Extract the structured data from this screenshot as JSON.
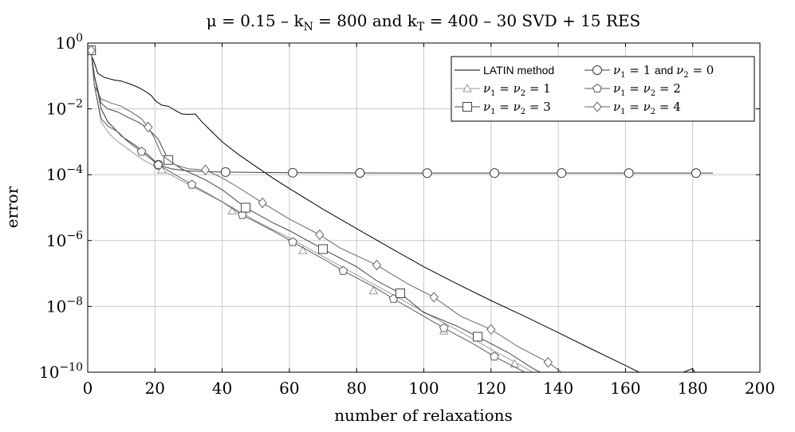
{
  "chart_data": {
    "type": "line",
    "title": "μ = 0.15 – k_N = 800 and k_T = 400 – 30 SVD + 15 RES",
    "title_parts": {
      "prefix": "μ = 0.15 – k",
      "sub1": "N",
      "mid": " = 800 and k",
      "sub2": "T",
      "suffix": " = 400 – 30 SVD + 15 RES"
    },
    "xlabel": "number of relaxations",
    "ylabel": "error",
    "xlim": [
      0,
      200
    ],
    "ylim": [
      1e-10,
      1
    ],
    "yscale": "log",
    "grid": true,
    "legend_position": "top-right",
    "x_ticks": [
      0,
      20,
      40,
      60,
      80,
      100,
      120,
      140,
      160,
      180,
      200
    ],
    "y_ticks": [
      {
        "exp": "0",
        "value": 1
      },
      {
        "exp": "−2",
        "value": 0.01
      },
      {
        "exp": "−4",
        "value": 0.0001
      },
      {
        "exp": "−6",
        "value": 1e-06
      },
      {
        "exp": "−8",
        "value": 1e-08
      },
      {
        "exp": "−10",
        "value": 1e-10
      }
    ],
    "series": [
      {
        "name": "LATIN method",
        "legend_parts": [
          {
            "t": "LATIN method",
            "f": "sans"
          }
        ],
        "marker": "none",
        "color": "#000000",
        "points": [
          [
            0,
            0.5
          ],
          [
            1,
            0.45
          ],
          [
            2,
            0.25
          ],
          [
            3,
            0.12
          ],
          [
            5,
            0.09
          ],
          [
            8,
            0.075
          ],
          [
            10,
            0.07
          ],
          [
            13,
            0.055
          ],
          [
            15,
            0.045
          ],
          [
            17,
            0.035
          ],
          [
            19,
            0.025
          ],
          [
            20,
            0.018
          ],
          [
            22,
            0.013
          ],
          [
            24,
            0.012
          ],
          [
            26,
            0.009
          ],
          [
            28,
            0.007
          ],
          [
            30,
            0.0068
          ],
          [
            32,
            0.007
          ],
          [
            34,
            0.004
          ],
          [
            37,
            0.002
          ],
          [
            40,
            0.001
          ],
          [
            45,
            0.0004
          ],
          [
            50,
            0.00018
          ],
          [
            55,
            8e-05
          ],
          [
            60,
            3.8e-05
          ],
          [
            70,
            9e-06
          ],
          [
            80,
            2.3e-06
          ],
          [
            90,
            6e-07
          ],
          [
            100,
            1.6e-07
          ],
          [
            110,
            4.8e-08
          ],
          [
            120,
            1.5e-08
          ],
          [
            130,
            5e-09
          ],
          [
            140,
            1.6e-09
          ],
          [
            150,
            5e-10
          ],
          [
            160,
            1.6e-10
          ],
          [
            170,
            5e-11
          ],
          [
            180,
            1.3e-10
          ],
          [
            181,
            8e-11
          ]
        ]
      },
      {
        "name": "ν1 = 1 and ν2 = 0",
        "legend_parts": [
          {
            "t": "ν",
            "f": "serif-i"
          },
          {
            "t": "1",
            "f": "sub"
          },
          {
            "t": " = 1 ",
            "f": "serif"
          },
          {
            "t": "and ",
            "f": "sans"
          },
          {
            "t": "ν",
            "f": "serif-i"
          },
          {
            "t": "2",
            "f": "sub"
          },
          {
            "t": " = 0",
            "f": "serif"
          }
        ],
        "marker": "circle",
        "color": "#3a3a3a",
        "points": [
          [
            0,
            0.55
          ],
          [
            1,
            0.6
          ],
          [
            2,
            0.1
          ],
          [
            4,
            0.01
          ],
          [
            6,
            0.004
          ],
          [
            8,
            0.0025
          ],
          [
            10,
            0.0015
          ],
          [
            14,
            0.0008
          ],
          [
            18,
            0.0004
          ],
          [
            21,
            0.0002
          ],
          [
            25,
            0.00015
          ],
          [
            30,
            0.00013
          ],
          [
            40,
            0.00012
          ],
          [
            60,
            0.000115
          ],
          [
            80,
            0.000113
          ],
          [
            100,
            0.000112
          ],
          [
            120,
            0.000112
          ],
          [
            140,
            0.000112
          ],
          [
            160,
            0.000112
          ],
          [
            180,
            0.000112
          ],
          [
            186,
            0.000112
          ]
        ],
        "markers": [
          [
            1,
            0.6
          ],
          [
            21,
            0.0002
          ],
          [
            41,
            0.00012
          ],
          [
            61,
            0.000115
          ],
          [
            81,
            0.000113
          ],
          [
            101,
            0.000112
          ],
          [
            121,
            0.000112
          ],
          [
            141,
            0.000112
          ],
          [
            161,
            0.000112
          ],
          [
            181,
            0.000112
          ]
        ]
      },
      {
        "name": "ν1 = ν2 = 1",
        "legend_parts": [
          {
            "t": "ν",
            "f": "serif-i"
          },
          {
            "t": "1",
            "f": "sub"
          },
          {
            "t": " = ",
            "f": "serif"
          },
          {
            "t": "ν",
            "f": "serif-i"
          },
          {
            "t": "2",
            "f": "sub"
          },
          {
            "t": " = 1",
            "f": "serif"
          }
        ],
        "marker": "triangle",
        "color": "#9a9a9a",
        "points": [
          [
            0,
            0.55
          ],
          [
            1,
            0.6
          ],
          [
            2,
            0.05
          ],
          [
            4,
            0.004
          ],
          [
            6,
            0.002
          ],
          [
            8,
            0.0012
          ],
          [
            12,
            0.0006
          ],
          [
            16,
            0.0003
          ],
          [
            22,
            0.00014
          ],
          [
            30,
            5e-05
          ],
          [
            40,
            1.5e-05
          ],
          [
            50,
            4e-06
          ],
          [
            60,
            1.2e-06
          ],
          [
            70,
            3.3e-07
          ],
          [
            80,
            9e-08
          ],
          [
            90,
            2.5e-08
          ],
          [
            100,
            6.8e-09
          ],
          [
            110,
            1.9e-09
          ],
          [
            120,
            5e-10
          ],
          [
            128,
            1.8e-10
          ],
          [
            135,
            7e-11
          ]
        ],
        "markers": [
          [
            1,
            0.6
          ],
          [
            22,
            0.00014
          ],
          [
            43,
            8e-06
          ],
          [
            64,
            5e-07
          ],
          [
            85,
            3e-08
          ],
          [
            106,
            1.8e-09
          ],
          [
            127,
            1.8e-10
          ]
        ]
      },
      {
        "name": "ν1 = ν2 = 2",
        "legend_parts": [
          {
            "t": "ν",
            "f": "serif-i"
          },
          {
            "t": "1",
            "f": "sub"
          },
          {
            "t": " = ",
            "f": "serif"
          },
          {
            "t": "ν",
            "f": "serif-i"
          },
          {
            "t": "2",
            "f": "sub"
          },
          {
            "t": " = 2",
            "f": "serif"
          }
        ],
        "marker": "pentagon",
        "color": "#5a5a5a",
        "points": [
          [
            0,
            0.55
          ],
          [
            1,
            0.6
          ],
          [
            2,
            0.05
          ],
          [
            4,
            0.005
          ],
          [
            6,
            0.003
          ],
          [
            9,
            0.002
          ],
          [
            12,
            0.001
          ],
          [
            16,
            0.0005
          ],
          [
            21,
            0.0002
          ],
          [
            26,
            0.0001
          ],
          [
            31,
            5e-05
          ],
          [
            40,
            1.5e-05
          ],
          [
            46,
            6e-06
          ],
          [
            55,
            2e-06
          ],
          [
            61,
            9e-07
          ],
          [
            70,
            2.8e-07
          ],
          [
            76,
            1.2e-07
          ],
          [
            85,
            4e-08
          ],
          [
            91,
            1.7e-08
          ],
          [
            100,
            5e-09
          ],
          [
            106,
            2.2e-09
          ],
          [
            115,
            7e-10
          ],
          [
            121,
            3e-10
          ],
          [
            130,
            1e-10
          ],
          [
            135,
            6e-11
          ]
        ],
        "markers": [
          [
            1,
            0.6
          ],
          [
            16,
            0.0005
          ],
          [
            21,
            0.0002
          ],
          [
            31,
            5e-05
          ],
          [
            46,
            6e-06
          ],
          [
            61,
            9e-07
          ],
          [
            76,
            1.2e-07
          ],
          [
            91,
            1.7e-08
          ],
          [
            106,
            2.2e-09
          ],
          [
            121,
            3e-10
          ]
        ]
      },
      {
        "name": "ν1 = ν2 = 3",
        "legend_parts": [
          {
            "t": "ν",
            "f": "serif-i"
          },
          {
            "t": "1",
            "f": "sub"
          },
          {
            "t": " = ",
            "f": "serif"
          },
          {
            "t": "ν",
            "f": "serif-i"
          },
          {
            "t": "2",
            "f": "sub"
          },
          {
            "t": " = 3",
            "f": "serif"
          }
        ],
        "marker": "square",
        "color": "#444444",
        "points": [
          [
            0,
            0.55
          ],
          [
            1,
            0.6
          ],
          [
            2,
            0.1
          ],
          [
            4,
            0.015
          ],
          [
            6,
            0.01
          ],
          [
            9,
            0.008
          ],
          [
            12,
            0.0055
          ],
          [
            15,
            0.004
          ],
          [
            18,
            0.0025
          ],
          [
            21,
            0.0012
          ],
          [
            24,
            0.00028
          ],
          [
            28,
            0.00015
          ],
          [
            35,
            7e-05
          ],
          [
            40,
            3.5e-05
          ],
          [
            47,
            1e-05
          ],
          [
            55,
            3.5e-06
          ],
          [
            60,
            2e-06
          ],
          [
            70,
            5.5e-07
          ],
          [
            80,
            1.6e-07
          ],
          [
            86,
            6e-08
          ],
          [
            93,
            2.5e-08
          ],
          [
            100,
            6.5e-09
          ],
          [
            110,
            2.5e-09
          ],
          [
            116,
            1.2e-09
          ],
          [
            125,
            4e-10
          ],
          [
            133,
            1.2e-10
          ],
          [
            138,
            7e-11
          ]
        ],
        "markers": [
          [
            1,
            0.6
          ],
          [
            24,
            0.00028
          ],
          [
            47,
            1e-05
          ],
          [
            70,
            5.5e-07
          ],
          [
            93,
            2.5e-08
          ],
          [
            116,
            1.2e-09
          ]
        ]
      },
      {
        "name": "ν1 = ν2 = 4",
        "legend_parts": [
          {
            "t": "ν",
            "f": "serif-i"
          },
          {
            "t": "1",
            "f": "sub"
          },
          {
            "t": " = ",
            "f": "serif"
          },
          {
            "t": "ν",
            "f": "serif-i"
          },
          {
            "t": "2",
            "f": "sub"
          },
          {
            "t": " = 4",
            "f": "serif"
          }
        ],
        "marker": "diamond",
        "color": "#666666",
        "points": [
          [
            0,
            0.55
          ],
          [
            1,
            0.6
          ],
          [
            2,
            0.05
          ],
          [
            4,
            0.02
          ],
          [
            7,
            0.015
          ],
          [
            10,
            0.012
          ],
          [
            13,
            0.008
          ],
          [
            16,
            0.005
          ],
          [
            18,
            0.0028
          ],
          [
            20,
            0.0012
          ],
          [
            22,
            0.0004
          ],
          [
            26,
            0.0002
          ],
          [
            30,
            0.00015
          ],
          [
            35,
            0.00014
          ],
          [
            40,
            8e-05
          ],
          [
            45,
            4e-05
          ],
          [
            52,
            1.4e-05
          ],
          [
            60,
            4.5e-06
          ],
          [
            69,
            1.5e-06
          ],
          [
            75,
            6e-07
          ],
          [
            86,
            1.8e-07
          ],
          [
            95,
            5e-08
          ],
          [
            103,
            1.9e-08
          ],
          [
            111,
            5e-09
          ],
          [
            120,
            2e-09
          ],
          [
            128,
            6e-10
          ],
          [
            137,
            2e-10
          ],
          [
            143,
            7e-11
          ]
        ],
        "markers": [
          [
            1,
            0.6
          ],
          [
            18,
            0.0028
          ],
          [
            35,
            0.00014
          ],
          [
            52,
            1.4e-05
          ],
          [
            69,
            1.5e-06
          ],
          [
            86,
            1.8e-07
          ],
          [
            103,
            1.9e-08
          ],
          [
            120,
            2e-09
          ],
          [
            137,
            2e-10
          ]
        ]
      }
    ]
  }
}
